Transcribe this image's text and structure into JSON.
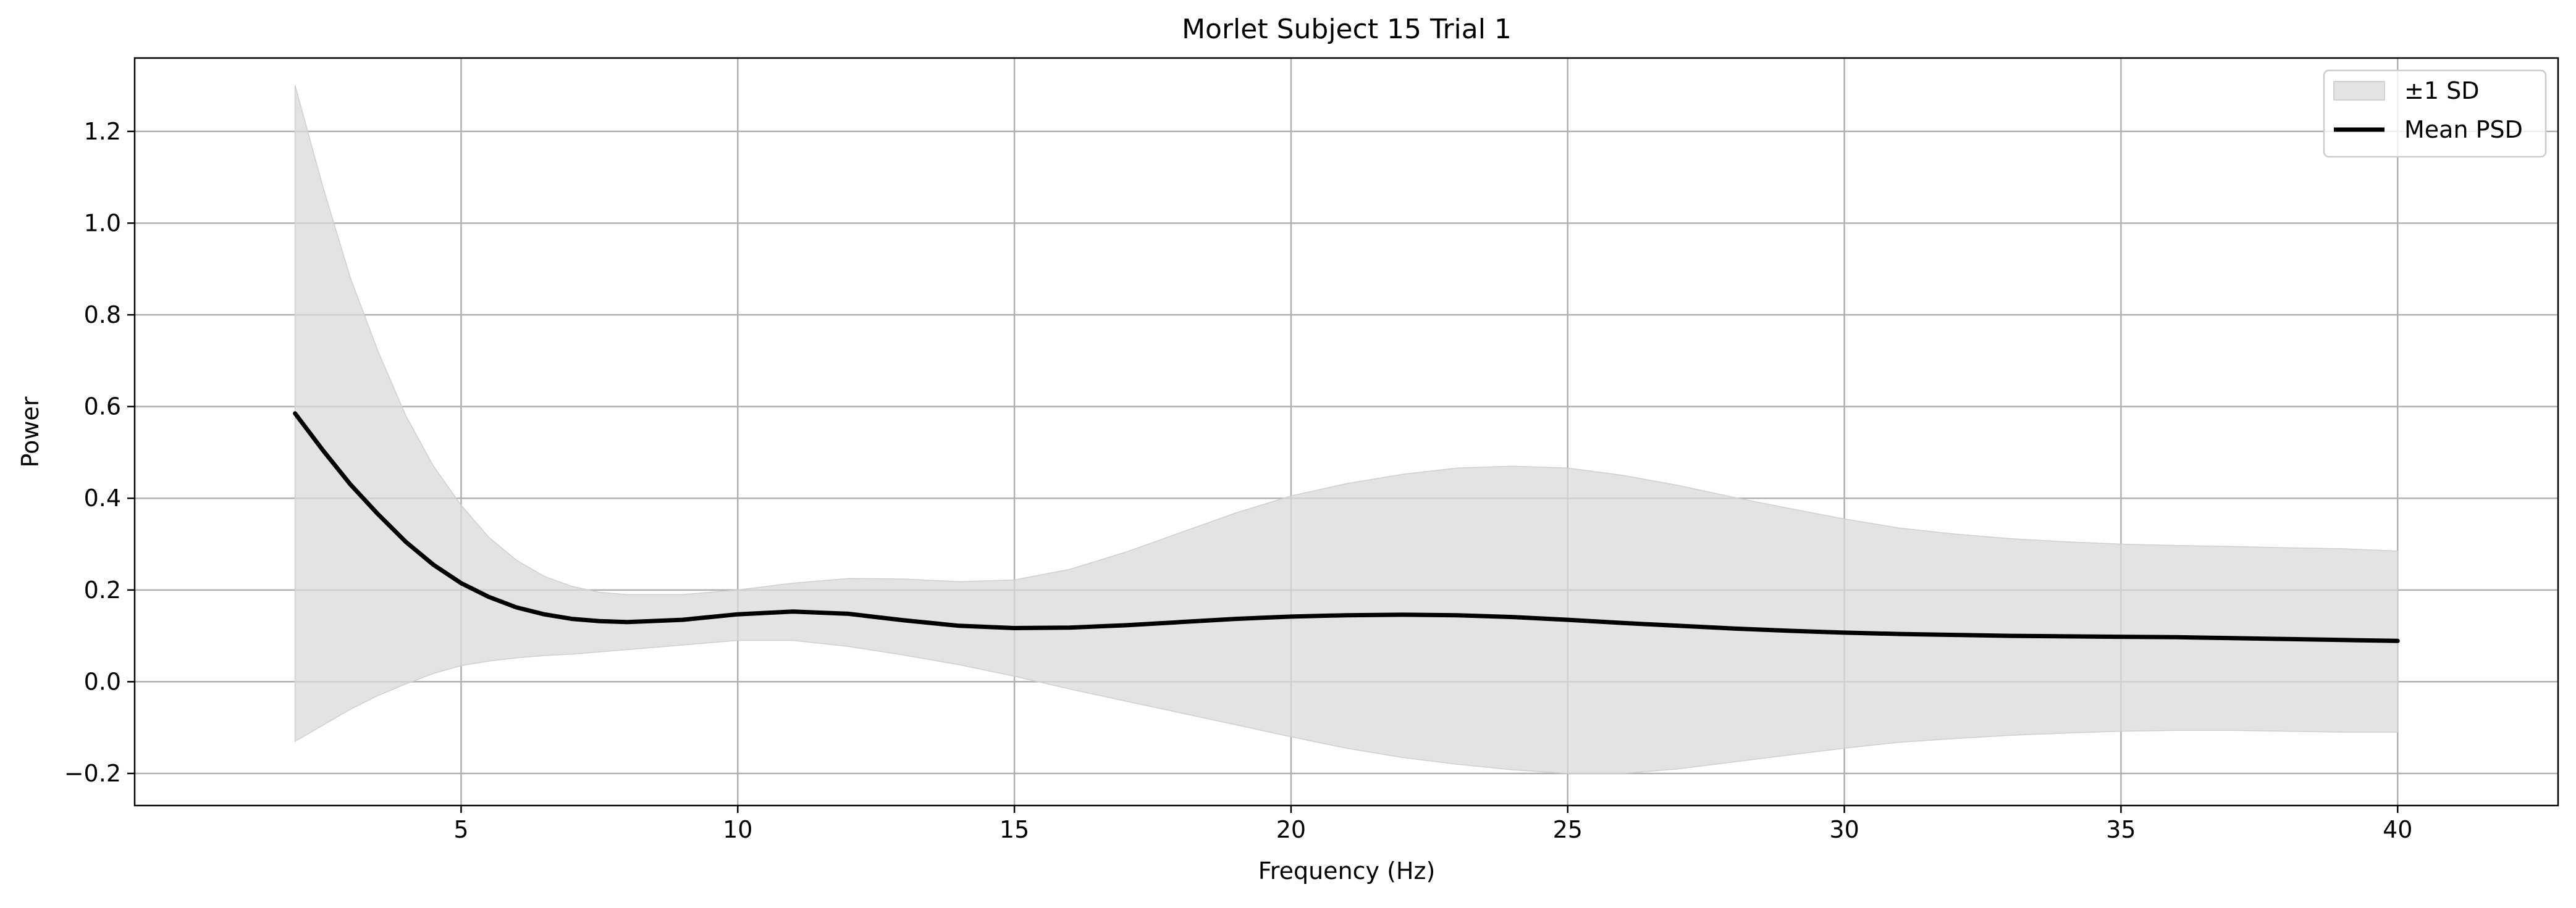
{
  "chart_data": {
    "type": "line",
    "title": "Morlet Subject 15 Trial 1",
    "xlabel": "Frequency (Hz)",
    "ylabel": "Power",
    "xlim": [
      -0.9,
      42.9
    ],
    "ylim": [
      -0.27,
      1.36
    ],
    "xticks": [
      5,
      10,
      15,
      20,
      25,
      30,
      35,
      40
    ],
    "xtick_labels": [
      "5",
      "10",
      "15",
      "20",
      "25",
      "30",
      "35",
      "40"
    ],
    "yticks": [
      -0.2,
      0.0,
      0.2,
      0.4,
      0.6,
      0.8,
      1.0,
      1.2
    ],
    "ytick_labels": [
      "−0.2",
      "0.0",
      "0.2",
      "0.4",
      "0.6",
      "0.8",
      "1.0",
      "1.2"
    ],
    "grid": true,
    "legend_position": "top-right",
    "legend": [
      {
        "label": "±1 SD",
        "kind": "band"
      },
      {
        "label": "Mean PSD",
        "kind": "line"
      }
    ],
    "colors": {
      "mean_line": "#000000",
      "band_fill": "#d9d9d9",
      "grid": "#b0b0b0"
    },
    "series": [
      {
        "name": "Mean PSD",
        "x": [
          2,
          2.5,
          3,
          3.5,
          4,
          4.5,
          5,
          5.5,
          6,
          6.5,
          7,
          7.5,
          8,
          9,
          10,
          11,
          12,
          13,
          14,
          15,
          16,
          17,
          18,
          19,
          20,
          21,
          22,
          23,
          24,
          25,
          26,
          27,
          28,
          29,
          30,
          31,
          32,
          33,
          34,
          35,
          36,
          37,
          38,
          39,
          40
        ],
        "y": [
          0.585,
          0.505,
          0.43,
          0.365,
          0.305,
          0.255,
          0.215,
          0.185,
          0.162,
          0.147,
          0.137,
          0.132,
          0.13,
          0.135,
          0.147,
          0.153,
          0.148,
          0.134,
          0.122,
          0.117,
          0.118,
          0.123,
          0.13,
          0.137,
          0.142,
          0.145,
          0.146,
          0.145,
          0.141,
          0.135,
          0.128,
          0.122,
          0.116,
          0.111,
          0.107,
          0.104,
          0.102,
          0.1,
          0.099,
          0.098,
          0.097,
          0.095,
          0.093,
          0.091,
          0.089
        ]
      }
    ],
    "band": {
      "name": "±1 SD",
      "x": [
        2,
        2.5,
        3,
        3.5,
        4,
        4.5,
        5,
        5.5,
        6,
        6.5,
        7,
        7.5,
        8,
        9,
        10,
        11,
        12,
        13,
        14,
        15,
        16,
        17,
        18,
        19,
        20,
        21,
        22,
        23,
        24,
        25,
        26,
        27,
        28,
        29,
        30,
        31,
        32,
        33,
        34,
        35,
        36,
        37,
        38,
        39,
        40
      ],
      "upper": [
        1.3,
        1.08,
        0.88,
        0.72,
        0.58,
        0.47,
        0.385,
        0.315,
        0.265,
        0.23,
        0.208,
        0.195,
        0.19,
        0.19,
        0.2,
        0.215,
        0.225,
        0.224,
        0.218,
        0.222,
        0.245,
        0.282,
        0.325,
        0.368,
        0.405,
        0.432,
        0.452,
        0.466,
        0.47,
        0.466,
        0.45,
        0.428,
        0.402,
        0.378,
        0.355,
        0.335,
        0.322,
        0.312,
        0.305,
        0.3,
        0.297,
        0.295,
        0.292,
        0.29,
        0.285
      ],
      "lower": [
        -0.13,
        -0.095,
        -0.06,
        -0.03,
        -0.005,
        0.018,
        0.035,
        0.045,
        0.052,
        0.057,
        0.06,
        0.065,
        0.07,
        0.08,
        0.09,
        0.09,
        0.077,
        0.058,
        0.037,
        0.012,
        -0.016,
        -0.042,
        -0.068,
        -0.094,
        -0.12,
        -0.145,
        -0.165,
        -0.18,
        -0.192,
        -0.2,
        -0.2,
        -0.19,
        -0.175,
        -0.16,
        -0.145,
        -0.132,
        -0.124,
        -0.117,
        -0.112,
        -0.108,
        -0.106,
        -0.106,
        -0.108,
        -0.11,
        -0.11
      ]
    }
  }
}
